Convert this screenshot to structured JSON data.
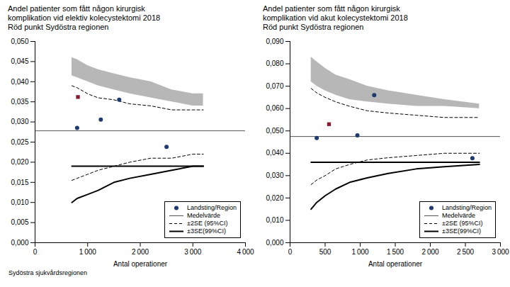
{
  "chart_data": [
    {
      "type": "funnel",
      "title": "Andel patienter som fått någon kirurgisk\nkomplikation vid elektiv kolecystektomi 2018",
      "subtitle": "Röd punkt Sydöstra regionen",
      "xlabel": "Antal operationer",
      "xlim": [
        0,
        4000
      ],
      "ylim": [
        0,
        0.05
      ],
      "xticks": [
        0,
        {
          "value": 1000,
          "label": "1 000"
        },
        {
          "value": 2000,
          "label": "2 000"
        },
        {
          "value": 3000,
          "label": "3 000"
        },
        {
          "value": 4000,
          "label": "4 000"
        }
      ],
      "yticks": [
        {
          "value": 0.0,
          "label": "0,000"
        },
        {
          "value": 0.005,
          "label": "0,005"
        },
        {
          "value": 0.01,
          "label": "0,010"
        },
        {
          "value": 0.015,
          "label": "0,015"
        },
        {
          "value": 0.02,
          "label": "0,020"
        },
        {
          "value": 0.025,
          "label": "0,025"
        },
        {
          "value": 0.03,
          "label": "0,030"
        },
        {
          "value": 0.035,
          "label": "0,035"
        },
        {
          "value": 0.04,
          "label": "0,040"
        },
        {
          "value": 0.045,
          "label": "0,045"
        },
        {
          "value": 0.05,
          "label": "0,050"
        }
      ],
      "grid": false,
      "legend": "lower right",
      "series": [
        {
          "name": "Landsting/Region",
          "type": "scatter",
          "marker": "circle",
          "color": "#1f3a6e",
          "x": [
            800,
            1250,
            1600,
            2500
          ],
          "values": [
            0.0285,
            0.0306,
            0.0355,
            0.0238
          ]
        },
        {
          "type": "scatter",
          "marker": "square",
          "color": "#8b1a2e",
          "x": [
            815
          ],
          "values": [
            0.0362
          ]
        },
        {
          "name": "Medelvärde",
          "type": "line",
          "line_style": "solid",
          "color": "#555555",
          "lines": [
            {
              "x": [
                0,
                4000
              ],
              "values": [
                0.0278,
                0.0278
              ]
            }
          ]
        },
        {
          "name": "±2SE (95%CI)",
          "type": "line",
          "line_style": "dashed",
          "color": "#000000",
          "lines": [
            {
              "x": [
                700,
                800,
                1000,
                1200,
                1500,
                1800,
                2200,
                2600,
                3000,
                3200
              ],
              "values": [
                0.039,
                0.0385,
                0.037,
                0.036,
                0.0355,
                0.0345,
                0.034,
                0.033,
                0.033,
                0.033
              ]
            },
            {
              "x": [
                700,
                800,
                1000,
                1200,
                1500,
                1800,
                2200,
                2600,
                3000,
                3200
              ],
              "values": [
                0.0155,
                0.016,
                0.017,
                0.018,
                0.019,
                0.02,
                0.021,
                0.021,
                0.022,
                0.022
              ]
            }
          ]
        },
        {
          "name": "±3SE(99%CI)",
          "type": "line",
          "line_style": "solid",
          "color": "#000000",
          "lines": [
            {
              "x": [
                700,
                3200
              ],
              "values": [
                0.019,
                0.019
              ]
            },
            {
              "x": [
                700,
                800,
                1000,
                1200,
                1500,
                1800,
                2200,
                2600,
                3000,
                3200
              ],
              "values": [
                0.01,
                0.011,
                0.012,
                0.013,
                0.015,
                0.016,
                0.017,
                0.018,
                0.019,
                0.019
              ]
            }
          ]
        },
        {
          "type": "area",
          "color": "#aaaaaa",
          "x": [
            700,
            800,
            1000,
            1200,
            1500,
            1800,
            2200,
            2600,
            3000,
            3200
          ],
          "upper": [
            0.046,
            0.0455,
            0.044,
            0.043,
            0.042,
            0.041,
            0.04,
            0.038,
            0.037,
            0.037
          ],
          "lower": [
            0.0415,
            0.041,
            0.04,
            0.039,
            0.038,
            0.037,
            0.036,
            0.035,
            0.034,
            0.034
          ]
        }
      ]
    },
    {
      "type": "funnel",
      "title": "Andel patienter som fått någon kirurgisk\nkomplikation vid akut kolecystektomi 2018",
      "subtitle": "Röd punkt Sydöstra regionen",
      "xlabel": "Antal operationer",
      "xlim": [
        0,
        3000
      ],
      "ylim": [
        0,
        0.09
      ],
      "xticks": [
        0,
        500,
        {
          "value": 1000,
          "label": "1 000"
        },
        {
          "value": 1500,
          "label": "1 500"
        },
        {
          "value": 2000,
          "label": "2 000"
        },
        {
          "value": 2500,
          "label": "2 500"
        },
        {
          "value": 3000,
          "label": "3 000"
        }
      ],
      "yticks": [
        {
          "value": 0.0,
          "label": "0,000"
        },
        {
          "value": 0.01,
          "label": "0,010"
        },
        {
          "value": 0.02,
          "label": "0,020"
        },
        {
          "value": 0.03,
          "label": "0,030"
        },
        {
          "value": 0.04,
          "label": "0,040"
        },
        {
          "value": 0.05,
          "label": "0,050"
        },
        {
          "value": 0.06,
          "label": "0,060"
        },
        {
          "value": 0.07,
          "label": "0,070"
        },
        {
          "value": 0.08,
          "label": "0,080"
        },
        {
          "value": 0.09,
          "label": "0,090"
        }
      ],
      "grid": false,
      "legend": "lower right",
      "series": [
        {
          "name": "Landsting/Region",
          "type": "scatter",
          "marker": "circle",
          "color": "#1f3a6e",
          "x": [
            380,
            960,
            1200,
            2600
          ],
          "values": [
            0.0468,
            0.048,
            0.066,
            0.0378
          ]
        },
        {
          "type": "scatter",
          "marker": "square",
          "color": "#8b1a2e",
          "x": [
            555
          ],
          "values": [
            0.053
          ]
        },
        {
          "name": "Medelvärde",
          "type": "line",
          "line_style": "solid",
          "color": "#555555",
          "lines": [
            {
              "x": [
                0,
                3000
              ],
              "values": [
                0.0475,
                0.0475
              ]
            }
          ]
        },
        {
          "name": "±2SE (95%CI)",
          "type": "line",
          "line_style": "dashed",
          "color": "#000000",
          "lines": [
            {
              "x": [
                300,
                380,
                500,
                650,
                850,
                1100,
                1400,
                1800,
                2200,
                2700
              ],
              "values": [
                0.069,
                0.067,
                0.065,
                0.063,
                0.061,
                0.059,
                0.058,
                0.057,
                0.056,
                0.056
              ]
            },
            {
              "x": [
                300,
                380,
                500,
                650,
                850,
                1100,
                1400,
                1800,
                2200,
                2700
              ],
              "values": [
                0.026,
                0.028,
                0.03,
                0.033,
                0.035,
                0.037,
                0.038,
                0.039,
                0.04,
                0.04
              ]
            }
          ]
        },
        {
          "name": "±3SE(99%CI)",
          "type": "line",
          "line_style": "solid",
          "color": "#000000",
          "lines": [
            {
              "x": [
                300,
                2700
              ],
              "values": [
                0.036,
                0.036
              ]
            },
            {
              "x": [
                300,
                380,
                500,
                650,
                850,
                1100,
                1400,
                1800,
                2200,
                2700
              ],
              "values": [
                0.015,
                0.018,
                0.021,
                0.024,
                0.027,
                0.029,
                0.031,
                0.033,
                0.034,
                0.035
              ]
            }
          ]
        },
        {
          "type": "area",
          "color": "#aaaaaa",
          "x": [
            300,
            380,
            500,
            650,
            850,
            1100,
            1400,
            1800,
            2200,
            2700
          ],
          "upper": [
            0.083,
            0.081,
            0.078,
            0.075,
            0.073,
            0.07,
            0.068,
            0.066,
            0.064,
            0.062
          ],
          "lower": [
            0.072,
            0.07,
            0.068,
            0.066,
            0.064,
            0.063,
            0.062,
            0.061,
            0.061,
            0.06
          ]
        }
      ]
    }
  ],
  "caption": "Sydöstra sjukvårdsregionen"
}
